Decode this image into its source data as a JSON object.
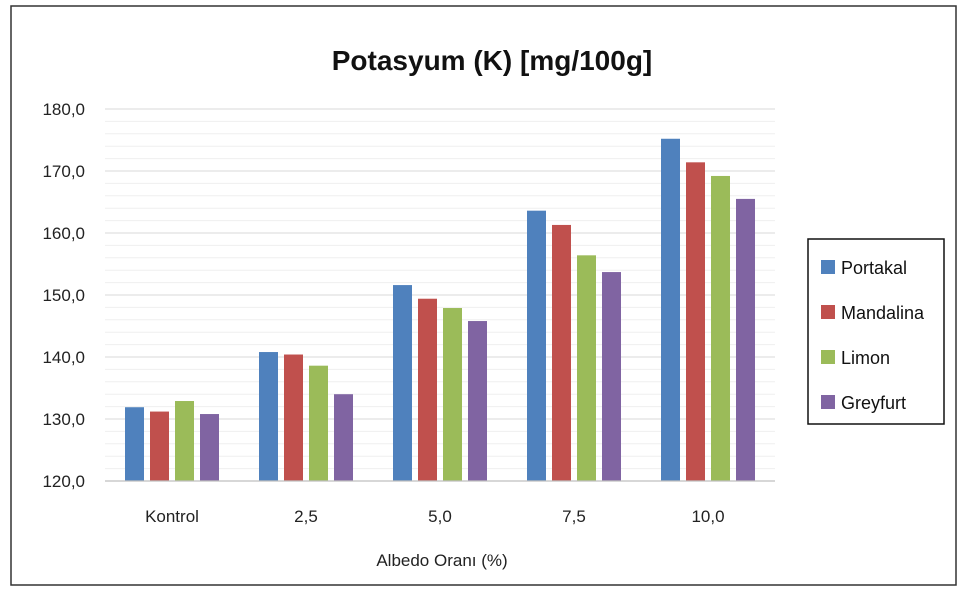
{
  "chart_data": {
    "type": "bar",
    "title": "Potasyum (K) [mg/100g]",
    "xlabel": "Albedo Oranı (%)",
    "ylabel": "",
    "ylim": [
      120,
      180
    ],
    "yticks": [
      "120,0",
      "130,0",
      "140,0",
      "150,0",
      "160,0",
      "170,0",
      "180,0"
    ],
    "categories": [
      "Kontrol",
      "2,5",
      "5,0",
      "7,5",
      "10,0"
    ],
    "series": [
      {
        "name": "Portakal",
        "color": "#4f81bd",
        "values": [
          131.9,
          140.8,
          151.6,
          163.6,
          175.2
        ]
      },
      {
        "name": "Mandalina",
        "color": "#c0504d",
        "values": [
          131.2,
          140.4,
          149.4,
          161.3,
          171.4
        ]
      },
      {
        "name": "Limon",
        "color": "#9bbb59",
        "values": [
          132.9,
          138.6,
          147.9,
          156.4,
          169.2
        ]
      },
      {
        "name": "Greyfurt",
        "color": "#8064a2",
        "values": [
          130.8,
          134.0,
          145.8,
          153.7,
          165.5
        ]
      }
    ],
    "grid": true,
    "minor_grid": true,
    "legend_position": "right"
  }
}
